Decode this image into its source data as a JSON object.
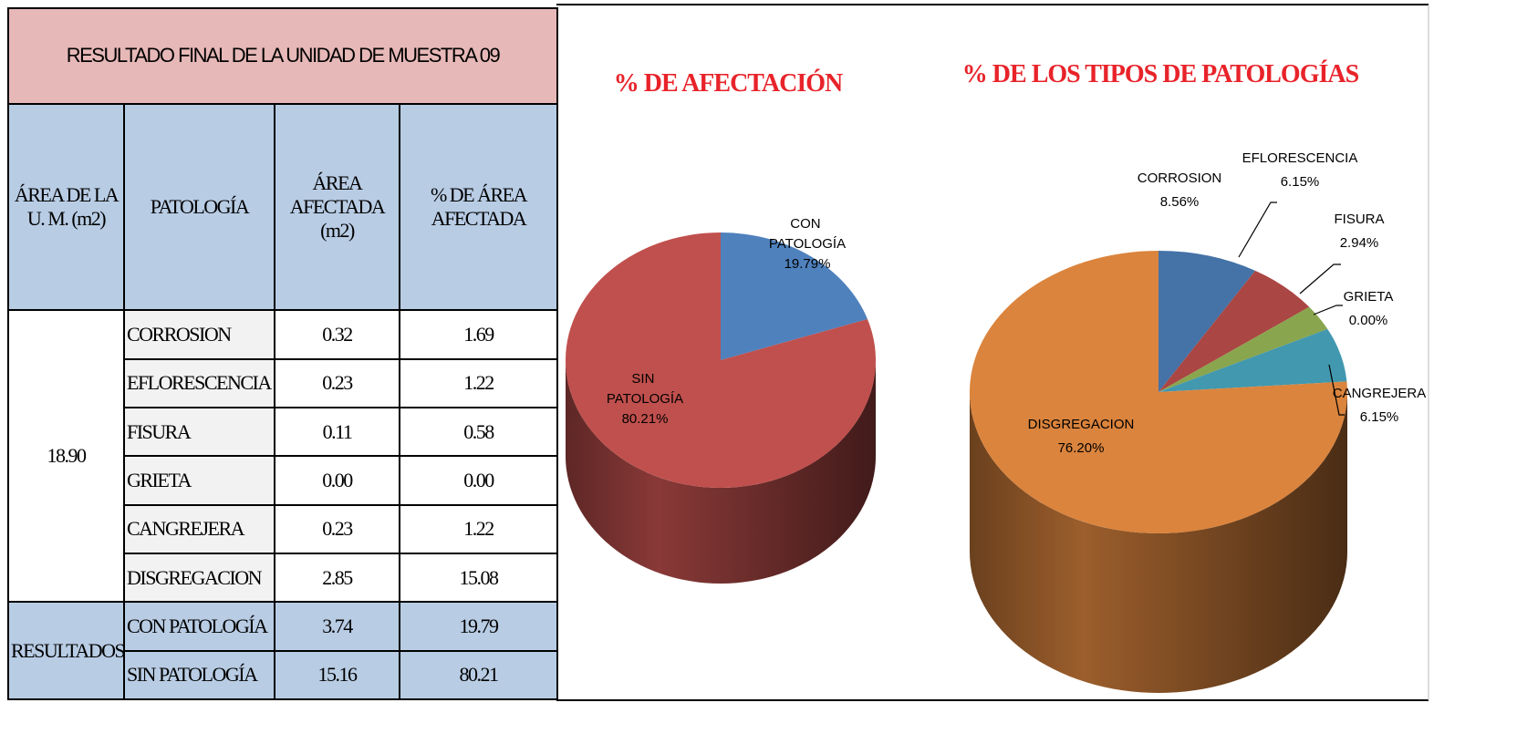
{
  "table": {
    "title": "RESULTADO FINAL DE LA UNIDAD DE MUESTRA 09",
    "headers": [
      "ÁREA DE LA U. M. (m2)",
      "PATOLOGÍA",
      "ÁREA AFECTADA (m2)",
      "% DE ÁREA AFECTADA"
    ],
    "unit_area": "18.90",
    "rows": [
      [
        "CORROSION",
        "0.32",
        "1.69"
      ],
      [
        "EFLORESCENCIA",
        "0.23",
        "1.22"
      ],
      [
        "FISURA",
        "0.11",
        "0.58"
      ],
      [
        "GRIETA",
        "0.00",
        "0.00"
      ],
      [
        "CANGREJERA",
        "0.23",
        "1.22"
      ],
      [
        "DISGREGACION",
        "2.85",
        "15.08"
      ]
    ],
    "results_label": "RESULTADOS",
    "results": [
      [
        "CON PATOLOGÍA",
        "3.74",
        "19.79"
      ],
      [
        "SIN PATOLOGÍA",
        "15.16",
        "80.21"
      ]
    ]
  },
  "chart_data": [
    {
      "type": "pie",
      "title": "% DE AFECTACIÓN",
      "categories": [
        "CON PATOLOGÍA",
        "SIN PATOLOGÍA"
      ],
      "values": [
        19.79,
        80.21
      ],
      "value_labels": [
        "19.79%",
        "80.21%"
      ],
      "colors": [
        "#4f81bd",
        "#c0504d"
      ]
    },
    {
      "type": "pie",
      "title": "% DE LOS TIPOS DE PATOLOGÍAS",
      "categories": [
        "CORROSION",
        "EFLORESCENCIA",
        "FISURA",
        "GRIETA",
        "CANGREJERA",
        "DISGREGACION"
      ],
      "values": [
        8.56,
        6.15,
        2.94,
        0.0,
        6.15,
        76.2
      ],
      "value_labels": [
        "8.56%",
        "6.15%",
        "2.94%",
        "0.00%",
        "6.15%",
        "76.20%"
      ],
      "colors": [
        "#4572a7",
        "#aa4643",
        "#89a54e",
        "#71588f",
        "#4198af",
        "#db843d"
      ]
    }
  ]
}
